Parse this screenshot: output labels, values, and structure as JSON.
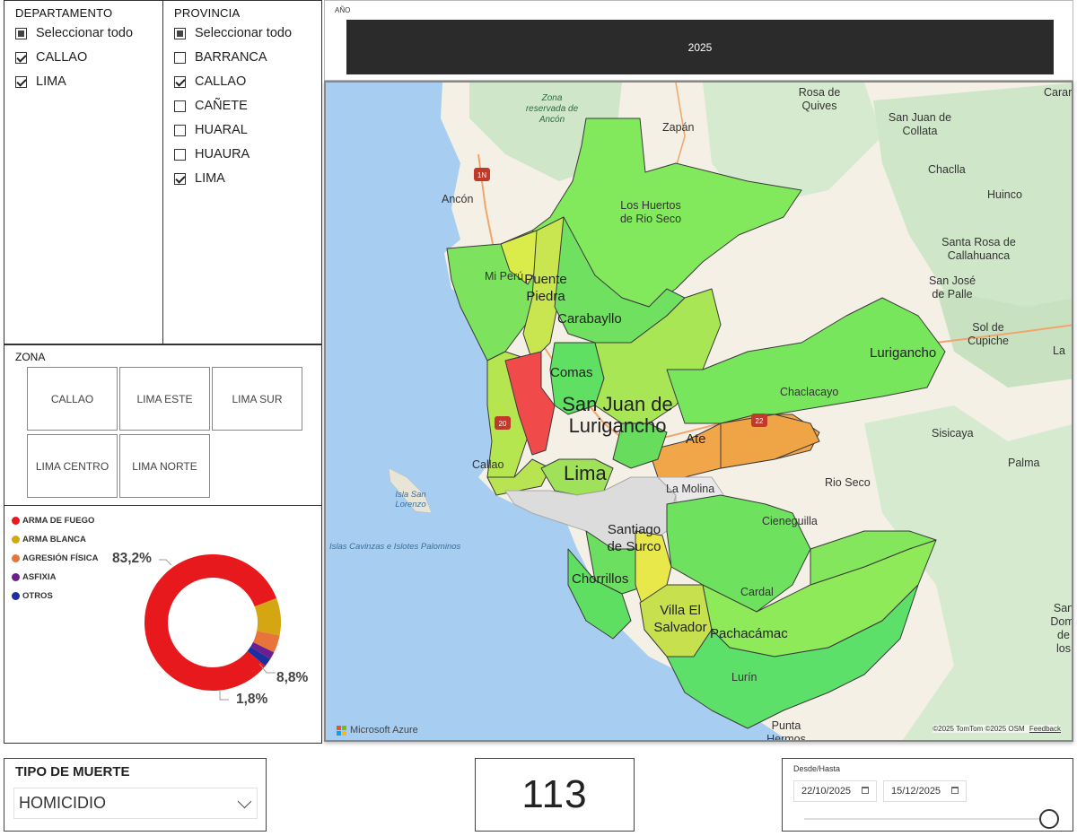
{
  "departamento": {
    "title": "DEPARTAMENTO",
    "items": [
      {
        "label": "Seleccionar todo",
        "state": "partial"
      },
      {
        "label": "CALLAO",
        "state": "checked"
      },
      {
        "label": "LIMA",
        "state": "checked"
      }
    ]
  },
  "provincia": {
    "title": "PROVINCIA",
    "items": [
      {
        "label": "Seleccionar todo",
        "state": "partial"
      },
      {
        "label": "BARRANCA",
        "state": "unchecked"
      },
      {
        "label": "CALLAO",
        "state": "checked"
      },
      {
        "label": "CAÑETE",
        "state": "unchecked"
      },
      {
        "label": "HUARAL",
        "state": "unchecked"
      },
      {
        "label": "HUAURA",
        "state": "unchecked"
      },
      {
        "label": "LIMA",
        "state": "checked"
      }
    ]
  },
  "anio": {
    "title": "AÑO",
    "value": "2025",
    "bar_color": "#2b2b2b"
  },
  "zona": {
    "title": "ZONA",
    "buttons": [
      "CALLAO",
      "LIMA ESTE",
      "LIMA SUR",
      "LIMA CENTRO",
      "LIMA NORTE"
    ]
  },
  "donut": {
    "legend": [
      {
        "label": "ARMA DE FUEGO",
        "color": "#e8191c"
      },
      {
        "label": "ARMA BLANCA",
        "color": "#d4a712"
      },
      {
        "label": "AGRESIÓN FÍSICA",
        "color": "#e8743b"
      },
      {
        "label": "ASFIXIA",
        "color": "#6b1f8f"
      },
      {
        "label": "OTROS",
        "color": "#1d2e9e"
      }
    ],
    "labels": {
      "arma_fuego": "83,2%",
      "arma_blanca": "8,8%",
      "agresion": "1,8%"
    },
    "shares": [
      83.2,
      8.8,
      4.2,
      1.8,
      2.0
    ]
  },
  "map": {
    "places": {
      "zona_reservada": "Zona reservada de Ancón",
      "rosa_quives": "Rosa de Quives",
      "carar": "Carar",
      "zapan": "Zapán",
      "san_juan_collata": "San Juan de Collata",
      "chaclla": "Chaclla",
      "huinco": "Huinco",
      "ancon": "Ancón",
      "huertos": "Los Huertos de Rio Seco",
      "santa_rosa": "Santa Rosa de Callahuanca",
      "san_jose": "San José de Palle",
      "sol_cupiche": "Sol de Cupiche",
      "mi_peru": "Mi Perú",
      "puente_piedra": "Puente Piedra",
      "carabayllo": "Carabayllo",
      "lurigancho": "Lurigancho",
      "la": "La",
      "comas": "Comas",
      "sjl": "San Juan de Lurigancho",
      "chaclacayo": "Chaclacayo",
      "ate": "Ate",
      "sisicaya": "Sisicaya",
      "palma": "Palma",
      "callao": "Callao",
      "lima": "Lima",
      "la_molina": "La Molina",
      "rio_seco": "Rio Seco",
      "isla_san_lorenzo": "Isla San Lorenzo",
      "cieneguilla": "Cieneguilla",
      "santiago_surco": "Santiago de Surco",
      "islas_cavinzas": "Islas Cavinzas e Islotes Palominos",
      "chorrillos": "Chorrillos",
      "cardal": "Cardal",
      "villa_salvador": "Villa El Salvador",
      "pachacamac": "Pachacámac",
      "san_domingo": "San Domi de los",
      "lurin": "Lurín",
      "punta_hermosa": "Punta Hermos",
      "shield_1n": "1N",
      "shield_20": "20",
      "shield_22": "22"
    },
    "brand": "Microsoft Azure",
    "attribution": "©2025 TomTom  ©2025 OSM",
    "feedback": "Feedback"
  },
  "tipo_muerte": {
    "title": "TIPO DE MUERTE",
    "value": "HOMICIDIO"
  },
  "kpi": {
    "value": "113"
  },
  "fecha": {
    "title": "Desde/Hasta",
    "from": "22/10/2025",
    "to": "15/12/2025"
  }
}
